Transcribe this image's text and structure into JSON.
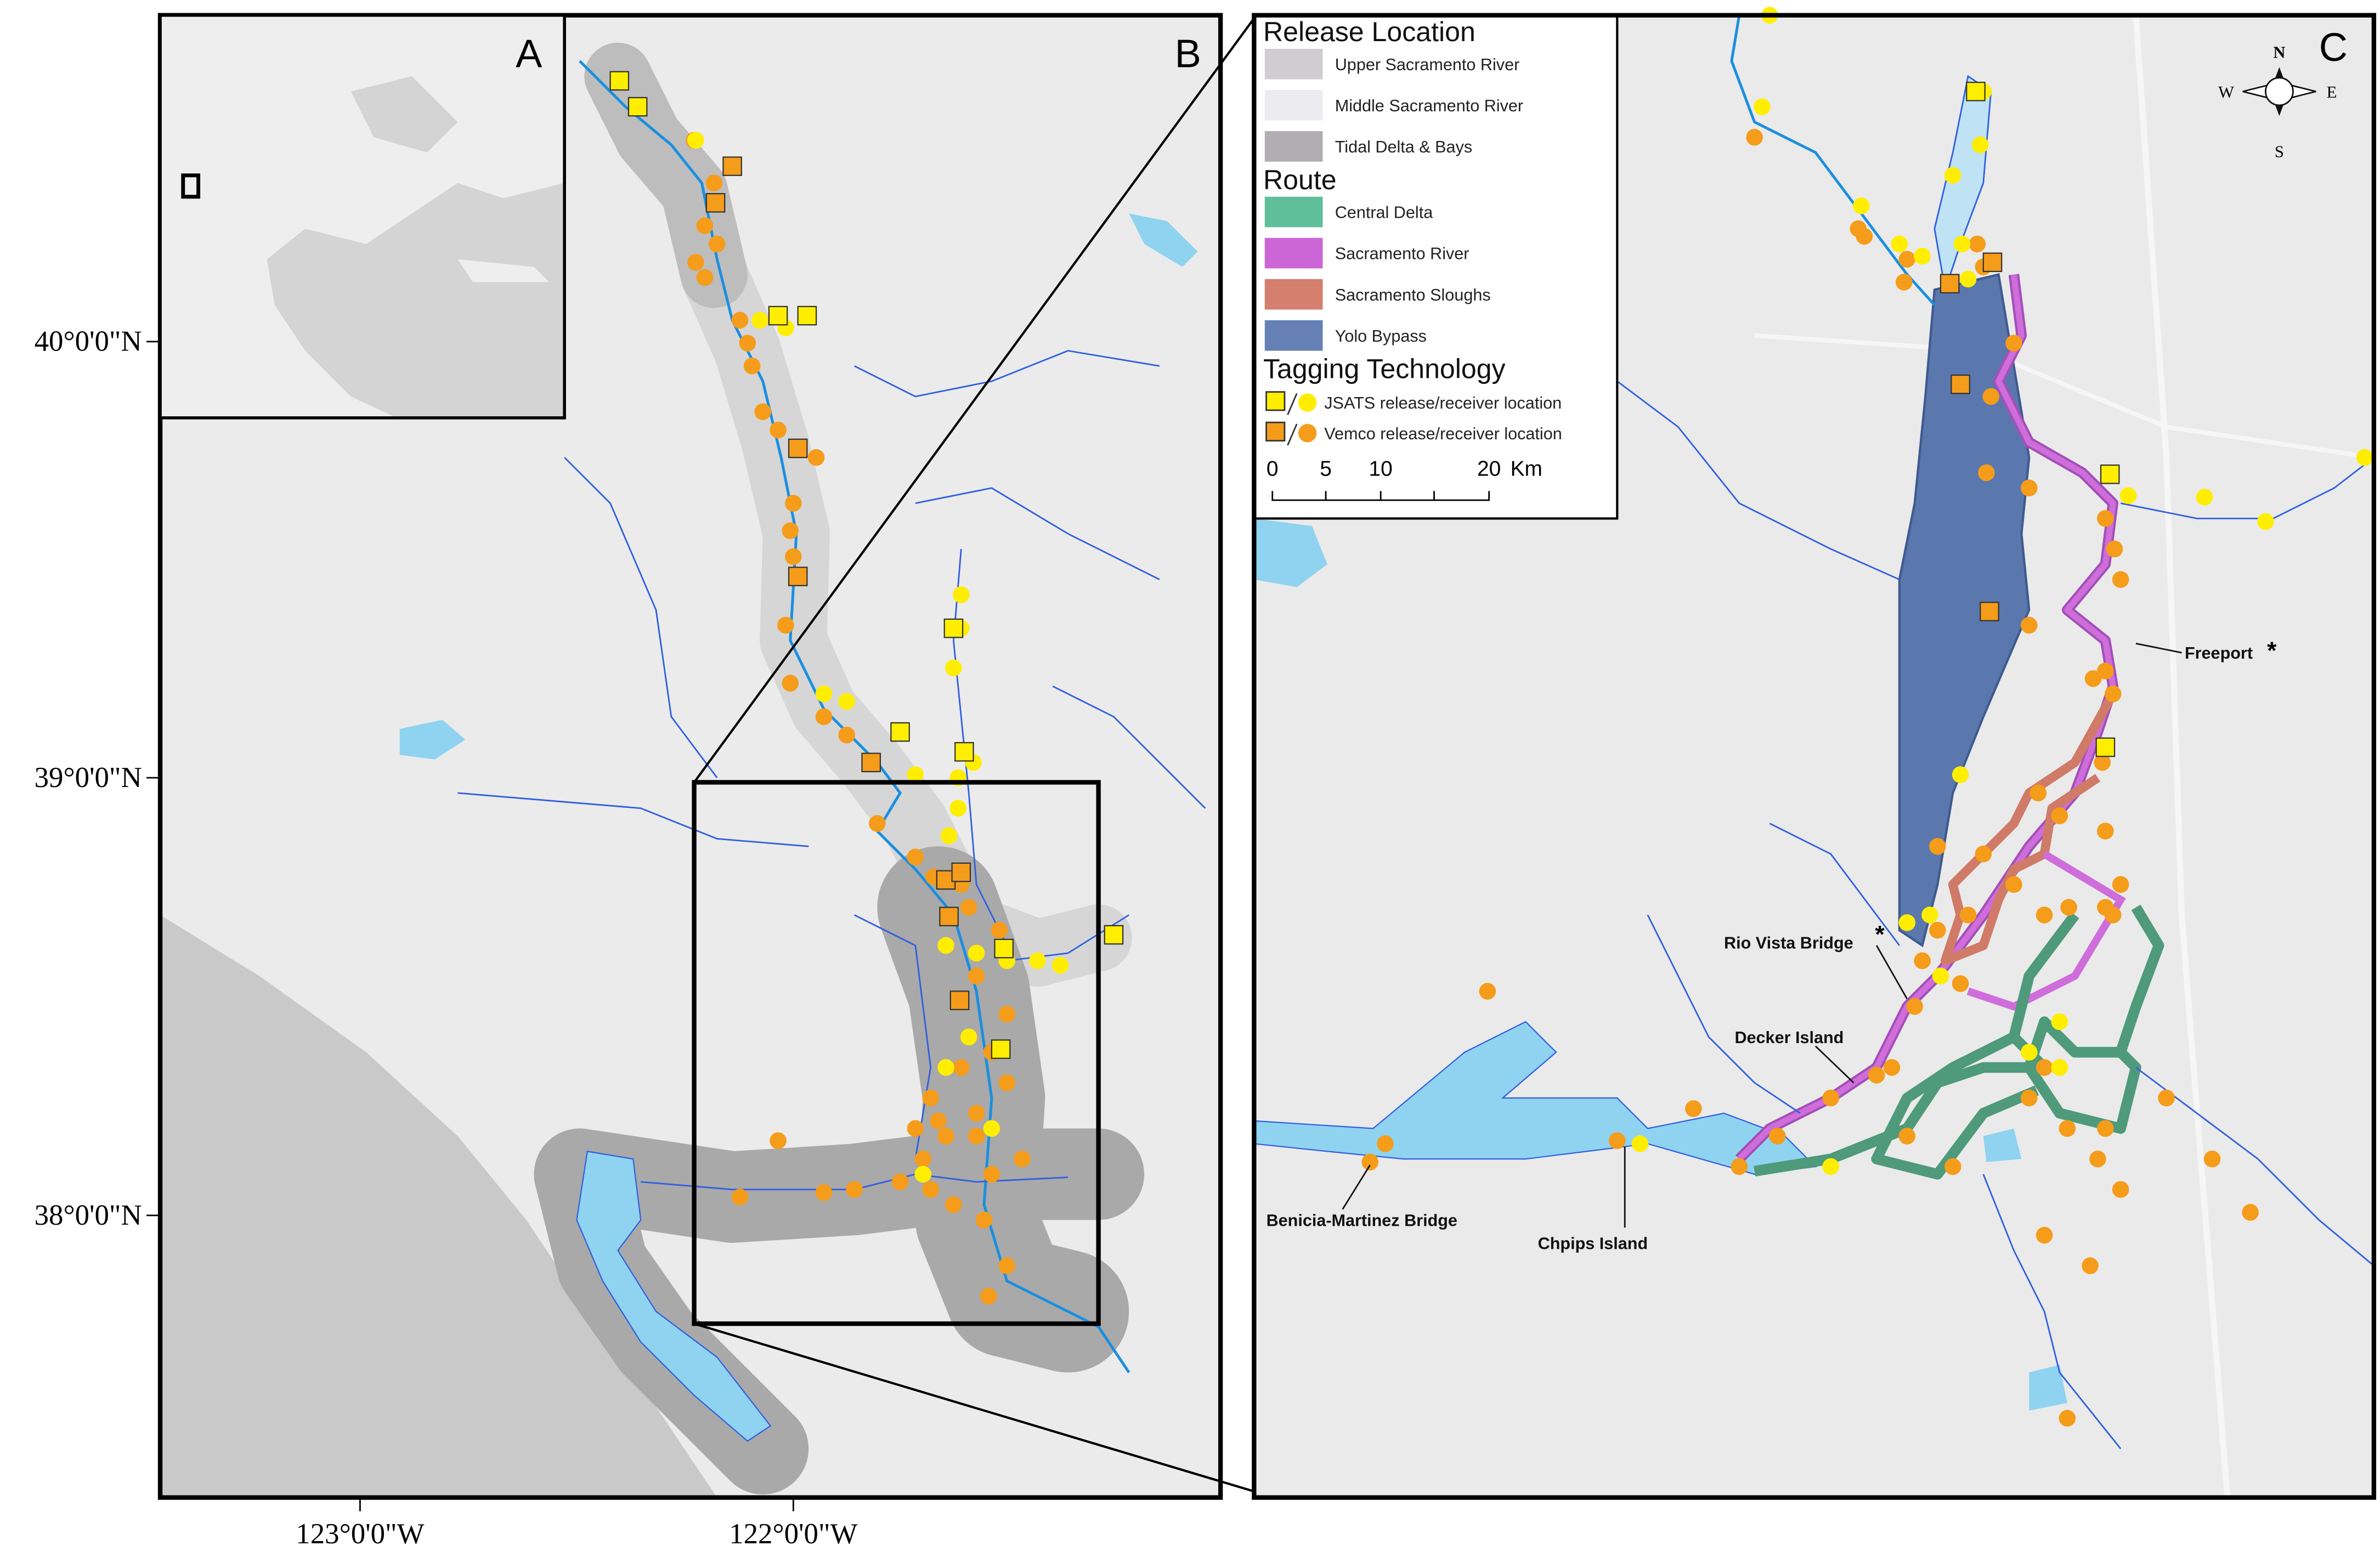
{
  "panels": {
    "a": "A",
    "b": "B",
    "c": "C"
  },
  "axes": {
    "latitude": [
      "40°0'0\"N",
      "39°0'0\"N",
      "38°0'0\"N"
    ],
    "longitude": [
      "123°0'0\"W",
      "122°0'0\"W"
    ]
  },
  "legend": {
    "release_title": "Release Location",
    "release_items": [
      "Upper Sacramento River",
      "Middle Sacramento River",
      "Tidal Delta & Bays"
    ],
    "route_title": "Route",
    "route_items": [
      "Central Delta",
      "Sacramento River",
      "Sacramento Sloughs",
      "Yolo Bypass"
    ],
    "tagging_title": "Tagging Technology",
    "tagging_items": [
      "JSATS release/receiver location",
      "Vemco release/receiver location"
    ],
    "scale": {
      "ticks": [
        "0",
        "5",
        "10",
        "20"
      ],
      "unit": "Km"
    }
  },
  "compass": {
    "n": "N",
    "s": "S",
    "e": "E",
    "w": "W"
  },
  "places": [
    {
      "name": "Freeport",
      "mark": "*"
    },
    {
      "name": "Rio Vista Bridge",
      "mark": "*"
    },
    {
      "name": "Decker Island"
    },
    {
      "name": "Benicia-Martinez Bridge"
    },
    {
      "name": "Chpips Island"
    }
  ]
}
